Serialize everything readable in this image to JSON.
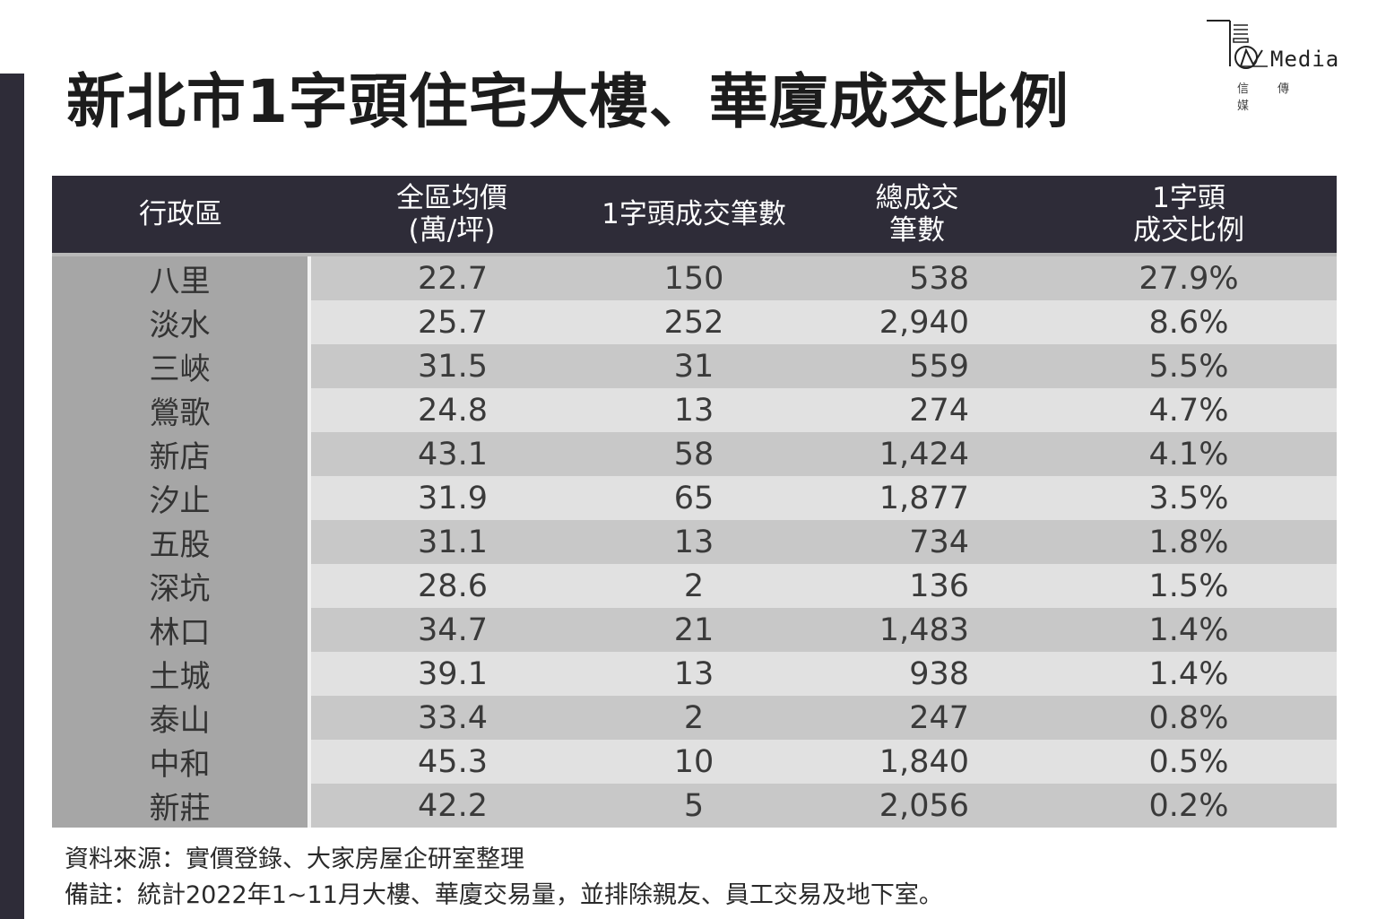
{
  "title": "新北市1字頭住宅大樓、華廈成交比例",
  "logo": {
    "word": "Media",
    "sub": [
      "信",
      "傳",
      "媒"
    ]
  },
  "colors": {
    "header_bg": "#2e2c38",
    "district_col": "#a6a6a6",
    "row_dark": "#c8c8c8",
    "row_light": "#e1e1e1"
  },
  "chart_data": {
    "type": "table",
    "title": "新北市1字頭住宅大樓、華廈成交比例",
    "columns": [
      [
        "行政區"
      ],
      [
        "全區均價",
        "(萬/坪)"
      ],
      [
        "1字頭成交筆數"
      ],
      [
        "總成交",
        "筆數"
      ],
      [
        "1字頭",
        "成交比例"
      ]
    ],
    "rows": [
      [
        "八里",
        "22.7",
        "150",
        "538",
        "27.9%"
      ],
      [
        "淡水",
        "25.7",
        "252",
        "2,940",
        "8.6%"
      ],
      [
        "三峽",
        "31.5",
        "31",
        "559",
        "5.5%"
      ],
      [
        "鶯歌",
        "24.8",
        "13",
        "274",
        "4.7%"
      ],
      [
        "新店",
        "43.1",
        "58",
        "1,424",
        "4.1%"
      ],
      [
        "汐止",
        "31.9",
        "65",
        "1,877",
        "3.5%"
      ],
      [
        "五股",
        "31.1",
        "13",
        "734",
        "1.8%"
      ],
      [
        "深坑",
        "28.6",
        "2",
        "136",
        "1.5%"
      ],
      [
        "林口",
        "34.7",
        "21",
        "1,483",
        "1.4%"
      ],
      [
        "土城",
        "39.1",
        "13",
        "938",
        "1.4%"
      ],
      [
        "泰山",
        "33.4",
        "2",
        "247",
        "0.8%"
      ],
      [
        "中和",
        "45.3",
        "10",
        "1,840",
        "0.5%"
      ],
      [
        "新莊",
        "42.2",
        "5",
        "2,056",
        "0.2%"
      ]
    ]
  },
  "notes": {
    "source": "資料來源：實價登錄、大家房屋企研室整理",
    "remark": "備註：統計2022年1~11月大樓、華廈交易量，並排除親友、員工交易及地下室。"
  }
}
